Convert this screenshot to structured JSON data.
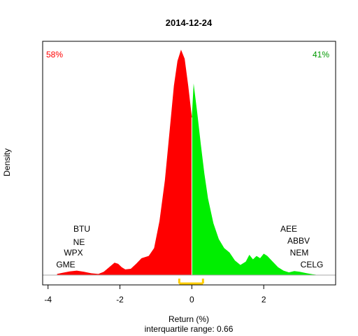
{
  "chart_data": {
    "type": "area",
    "title": "2014-12-24",
    "xlabel": "Return (%)",
    "ylabel": "Density",
    "subtitle": "interquartile range: 0.66",
    "xlim": [
      -4.15,
      4.0
    ],
    "ylim": [
      0,
      1.0
    ],
    "x_ticks": [
      -4,
      -2,
      0,
      2
    ],
    "x_tick_labels": [
      "-4",
      "-2",
      "0",
      "2"
    ],
    "negative_share": "58%",
    "positive_share": "41%",
    "colors": {
      "negative": "#ff0000",
      "positive": "#00ee00",
      "iqr": "#ffcc00"
    },
    "iqr": [
      -0.35,
      0.31
    ],
    "split_x": 0,
    "negative_tickers": [
      "BTU",
      "NE",
      "WPX",
      "GME"
    ],
    "positive_tickers": [
      "AEE",
      "ABBV",
      "NEM",
      "CELG"
    ],
    "density": {
      "x": [
        -3.75,
        -3.6,
        -3.4,
        -3.2,
        -3.0,
        -2.8,
        -2.6,
        -2.45,
        -2.3,
        -2.15,
        -2.05,
        -1.95,
        -1.85,
        -1.7,
        -1.55,
        -1.4,
        -1.3,
        -1.2,
        -1.05,
        -0.9,
        -0.75,
        -0.6,
        -0.5,
        -0.4,
        -0.3,
        -0.2,
        -0.1,
        0,
        0.05,
        0.15,
        0.25,
        0.35,
        0.45,
        0.6,
        0.75,
        0.9,
        1.05,
        1.2,
        1.35,
        1.5,
        1.6,
        1.7,
        1.8,
        1.9,
        2.0,
        2.1,
        2.25,
        2.4,
        2.55,
        2.7,
        2.85,
        3.0,
        3.2,
        3.35,
        3.45
      ],
      "y": [
        0.005,
        0.01,
        0.016,
        0.02,
        0.015,
        0.008,
        0.005,
        0.015,
        0.035,
        0.055,
        0.05,
        0.035,
        0.025,
        0.028,
        0.05,
        0.075,
        0.08,
        0.085,
        0.12,
        0.24,
        0.42,
        0.67,
        0.84,
        0.95,
        1.0,
        0.96,
        0.84,
        0.7,
        0.85,
        0.72,
        0.58,
        0.45,
        0.34,
        0.23,
        0.16,
        0.12,
        0.1,
        0.065,
        0.045,
        0.06,
        0.09,
        0.07,
        0.085,
        0.075,
        0.095,
        0.085,
        0.06,
        0.035,
        0.02,
        0.012,
        0.018,
        0.015,
        0.008,
        0.004,
        0.002
      ]
    }
  }
}
